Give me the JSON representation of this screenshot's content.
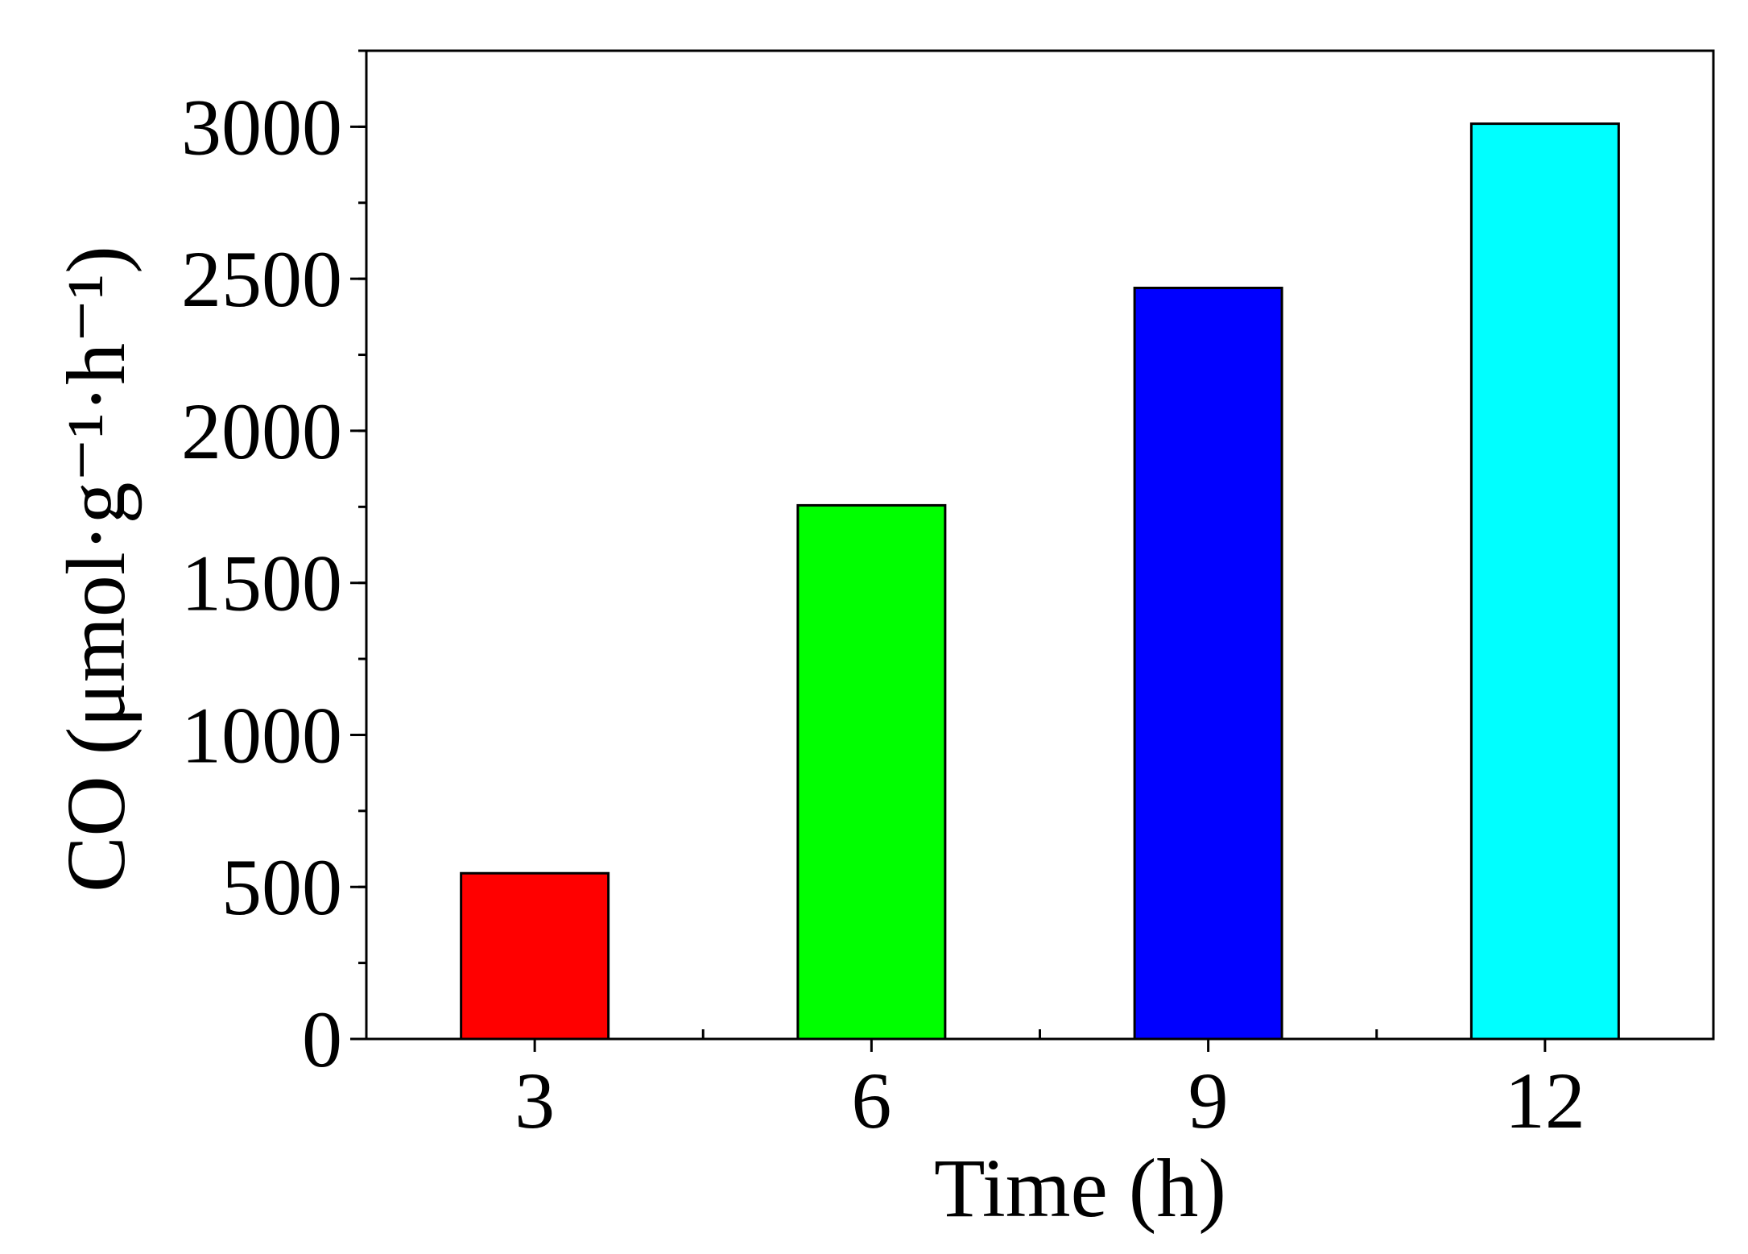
{
  "chart_data": {
    "type": "bar",
    "title": "",
    "categories": [
      "3",
      "6",
      "9",
      "12"
    ],
    "values": [
      545,
      1755,
      2470,
      3010
    ],
    "colors": [
      "#ff0000",
      "#00ff00",
      "#0000ff",
      "#00ffff"
    ],
    "xlabel": "Time (h)",
    "ylabel": "CO (μmol·g⁻¹·h⁻¹)",
    "ylim": [
      0,
      3250
    ],
    "yticks": [
      0,
      500,
      1000,
      1500,
      2000,
      2500,
      3000
    ],
    "ytick_labels": [
      "0",
      "500",
      "1000",
      "1500",
      "2000",
      "2500",
      "3000"
    ],
    "yminor_step": 250,
    "grid": false,
    "legend": "none"
  }
}
